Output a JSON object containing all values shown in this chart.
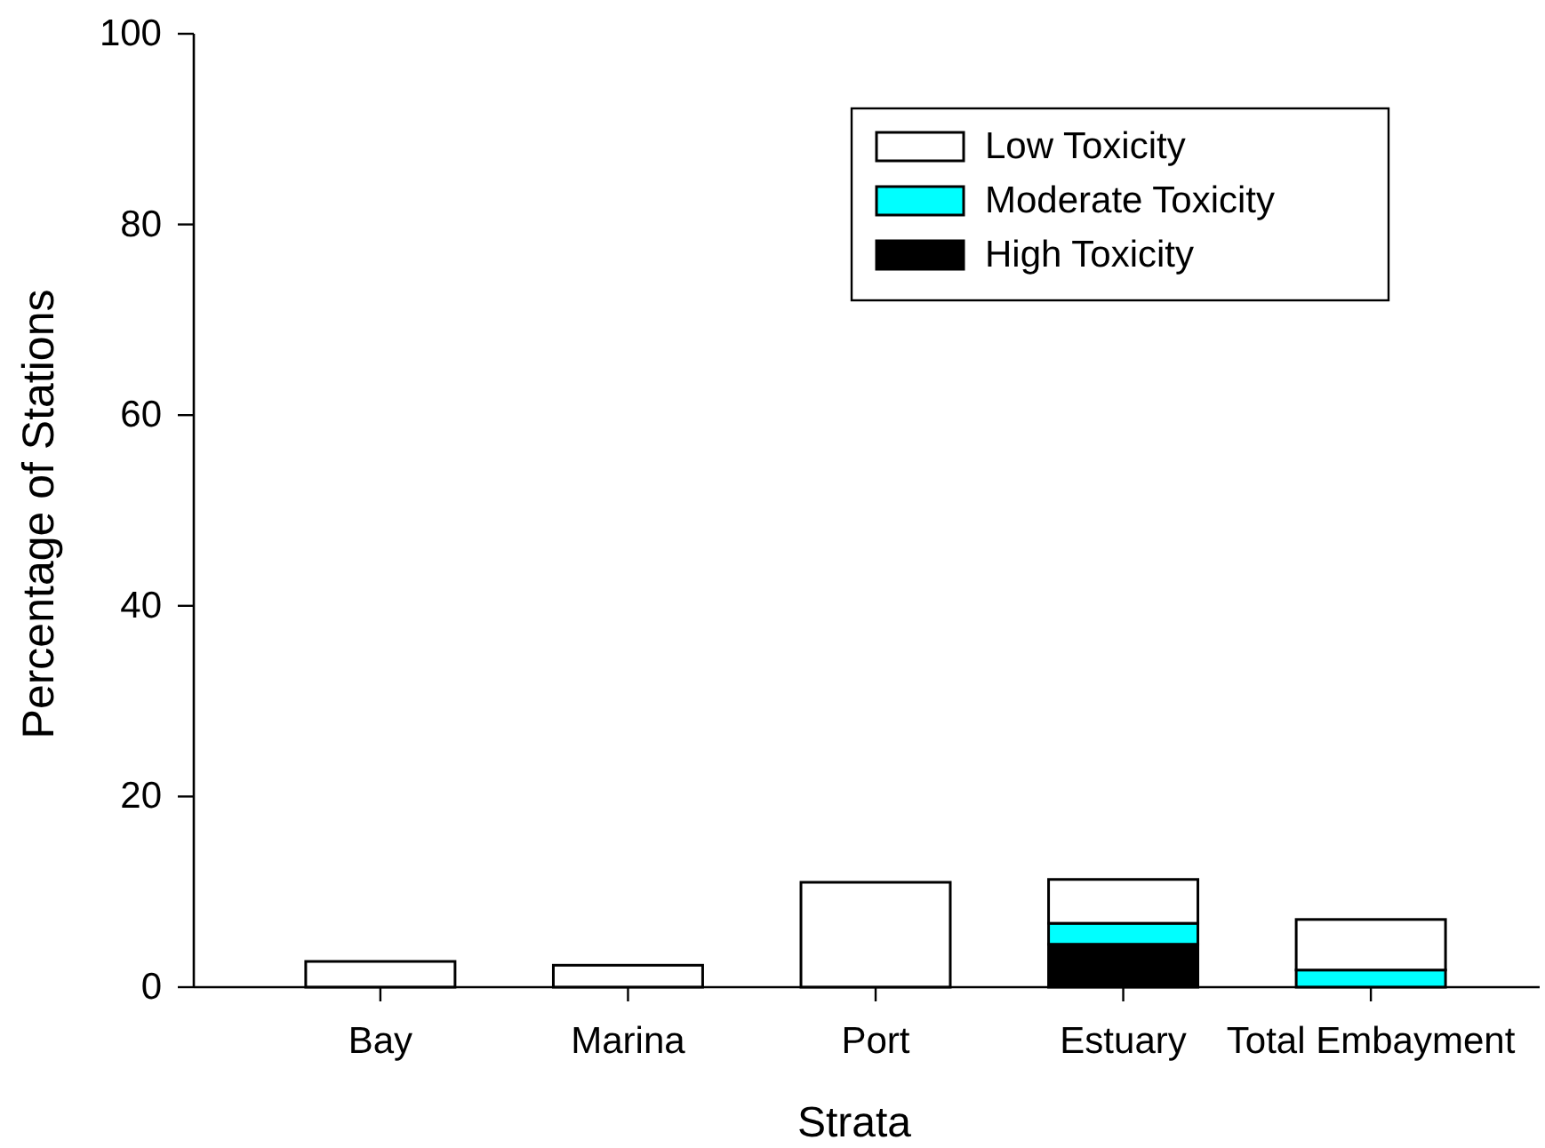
{
  "chart_data": {
    "type": "bar",
    "stacked": true,
    "xlabel": "Strata",
    "ylabel": "Percentage of Stations",
    "categories": [
      "Bay",
      "Marina",
      "Port",
      "Estuary",
      "Total Embayment"
    ],
    "series": [
      {
        "name": "High Toxicity",
        "color": "#000000",
        "values": [
          null,
          null,
          null,
          4.5,
          null
        ]
      },
      {
        "name": "Moderate Toxicity",
        "color": "#00ffff",
        "values": [
          null,
          null,
          null,
          2.2,
          1.8
        ]
      },
      {
        "name": "Low Toxicity",
        "color": "#ffffff",
        "values": [
          2.7,
          2.3,
          11.0,
          4.6,
          5.3
        ]
      }
    ],
    "ylim": [
      0,
      100
    ],
    "yticks": [
      0,
      20,
      40,
      60,
      80,
      100
    ],
    "legend": "top right"
  }
}
